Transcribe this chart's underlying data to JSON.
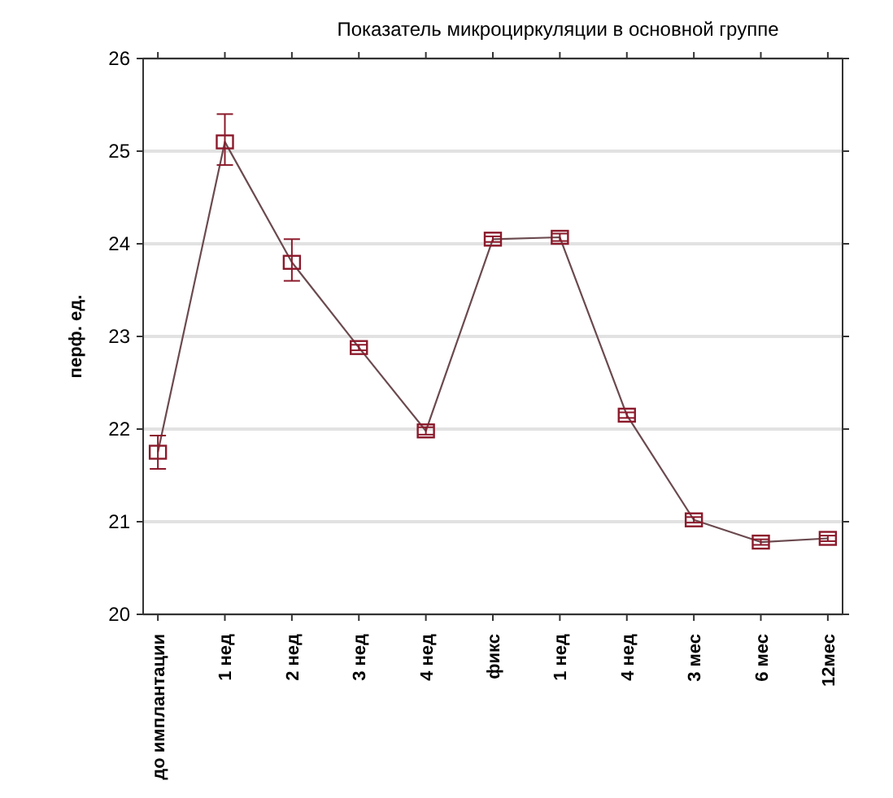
{
  "chart_data": {
    "type": "line",
    "title": "Показатель микроциркуляции в основной группе",
    "ylabel": "перф. ед.",
    "categories": [
      "до имплантации",
      "1 нед",
      "2 нед",
      "3 нед",
      "4 нед",
      "фикс",
      "1 нед",
      "4 нед",
      "3 мес",
      "6 мес",
      "12мес"
    ],
    "series": [
      {
        "color": "#8b1a2b",
        "values": [
          21.75,
          25.1,
          23.8,
          22.88,
          21.98,
          24.05,
          24.07,
          22.15,
          21.02,
          20.78,
          20.82
        ],
        "errors": [
          [
            21.57,
            21.93
          ],
          [
            24.85,
            25.4
          ],
          [
            23.6,
            24.05
          ],
          [
            22.85,
            22.91
          ],
          [
            21.94,
            22.02
          ],
          [
            24.02,
            24.08
          ],
          [
            24.03,
            24.11
          ],
          [
            22.12,
            22.18
          ],
          [
            20.99,
            21.05
          ],
          [
            20.75,
            20.81
          ],
          [
            20.79,
            20.85
          ]
        ]
      }
    ],
    "ylim": [
      20,
      26
    ],
    "yticks": [
      20,
      21,
      22,
      23,
      24,
      25,
      26
    ],
    "grid": "y",
    "marker": "square",
    "line_style": "solid"
  }
}
